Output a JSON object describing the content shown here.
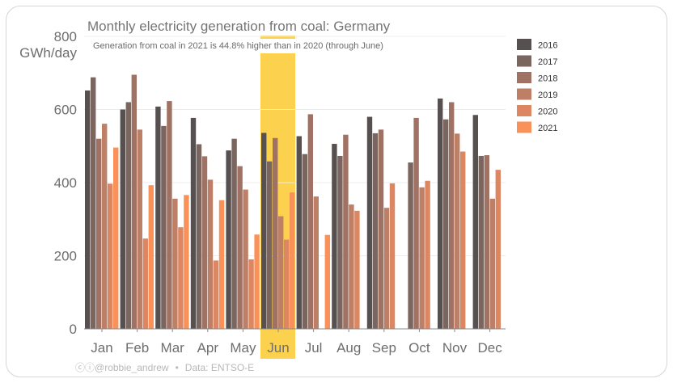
{
  "chart_data": {
    "type": "bar",
    "title": "Monthly electricity generation from coal: Germany",
    "subtitle": "Generation from coal in 2021 is 44.8% higher than in 2020 (through June)",
    "ylabel_top": "800",
    "ylabel_unit": "GWh/day",
    "xlabel": "",
    "ylim": [
      0,
      800
    ],
    "yticks": [
      0,
      200,
      400,
      600
    ],
    "highlight_category": "Jun",
    "highlight_color": "#fcc92f",
    "categories": [
      "Jan",
      "Feb",
      "Mar",
      "Apr",
      "May",
      "Jun",
      "Jul",
      "Aug",
      "Sep",
      "Oct",
      "Nov",
      "Dec"
    ],
    "series": [
      {
        "name": "2016",
        "color": "#565050",
        "values": [
          652,
          600,
          608,
          577,
          488,
          536,
          527,
          506,
          580,
          null,
          630,
          585
        ]
      },
      {
        "name": "2017",
        "color": "#7b655f",
        "values": [
          688,
          620,
          555,
          505,
          520,
          458,
          478,
          473,
          535,
          455,
          573,
          473
        ]
      },
      {
        "name": "2018",
        "color": "#9f7263",
        "values": [
          520,
          695,
          623,
          472,
          445,
          522,
          587,
          531,
          545,
          577,
          620,
          475
        ]
      },
      {
        "name": "2019",
        "color": "#bd7f65",
        "values": [
          561,
          545,
          356,
          408,
          381,
          308,
          362,
          340,
          331,
          387,
          534,
          356
        ]
      },
      {
        "name": "2020",
        "color": "#dc8761",
        "values": [
          397,
          247,
          278,
          187,
          190,
          244,
          null,
          323,
          398,
          405,
          485,
          435
        ]
      },
      {
        "name": "2021",
        "color": "#fa9159",
        "values": [
          496,
          393,
          366,
          352,
          258,
          373,
          257,
          null,
          null,
          null,
          null,
          null
        ]
      }
    ]
  },
  "footer": {
    "credit_icons": "ⓒⓘ",
    "handle": "@robbie_andrew",
    "separator": "•",
    "source": "Data: ENTSO-E"
  }
}
